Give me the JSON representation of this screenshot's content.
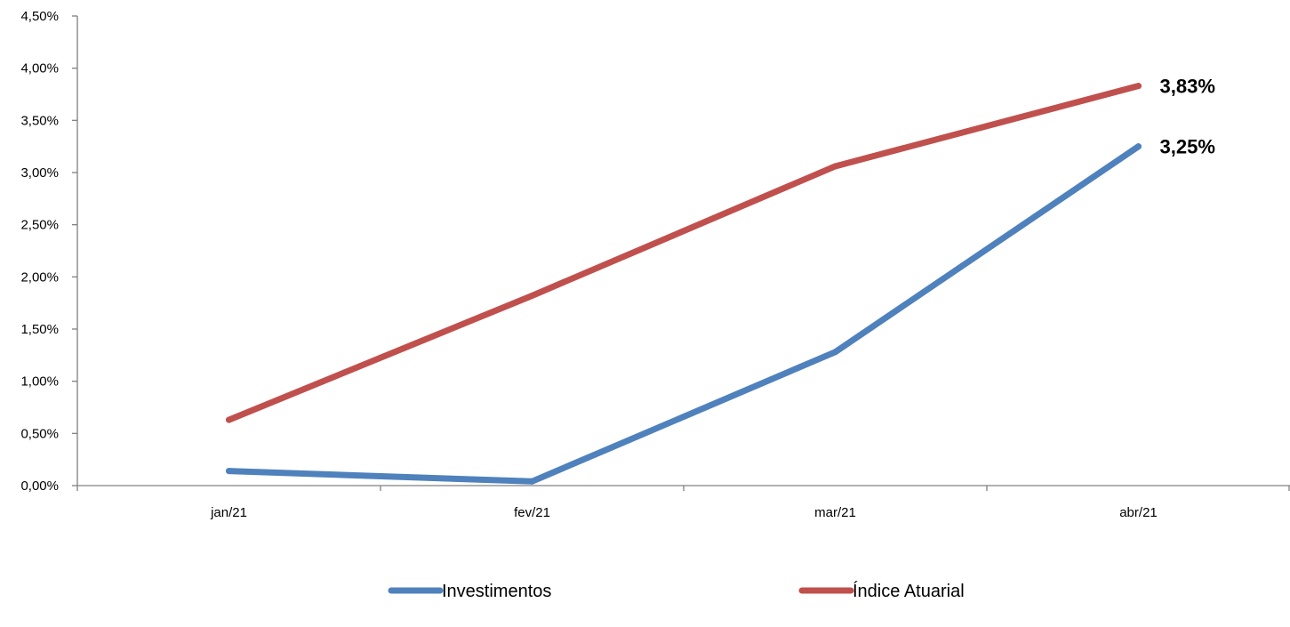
{
  "chart_data": {
    "type": "line",
    "title": "",
    "xlabel": "",
    "ylabel": "",
    "categories": [
      "jan/21",
      "fev/21",
      "mar/21",
      "abr/21"
    ],
    "y_ticks": [
      "0,00%",
      "0,50%",
      "1,00%",
      "1,50%",
      "2,00%",
      "2,50%",
      "3,00%",
      "3,50%",
      "4,00%",
      "4,50%"
    ],
    "ylim": [
      0,
      4.5
    ],
    "grid": false,
    "legend_position": "bottom",
    "series": [
      {
        "name": "Investimentos",
        "color": "#4F81BD",
        "values": [
          0.14,
          0.04,
          1.28,
          3.25
        ],
        "end_label": "3,25%"
      },
      {
        "name": "Índice Atuarial",
        "color": "#C0504D",
        "values": [
          0.63,
          1.82,
          3.06,
          3.83
        ],
        "end_label": "3,83%"
      }
    ]
  }
}
